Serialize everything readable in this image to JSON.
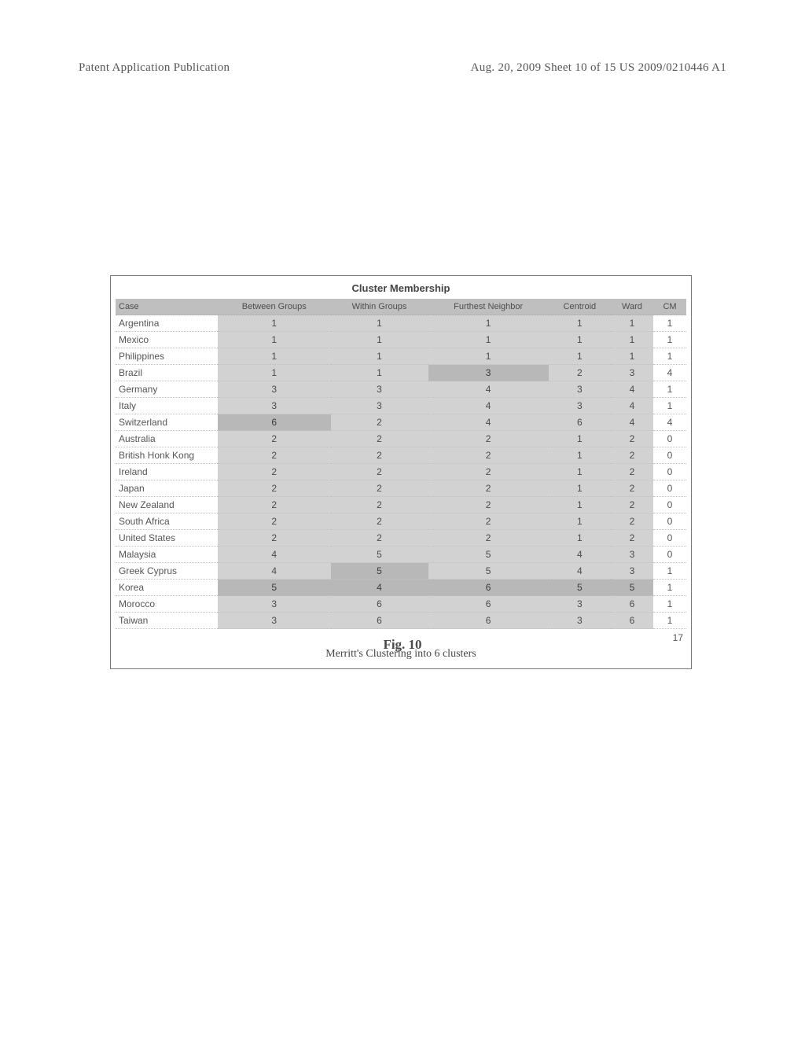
{
  "header": {
    "left": "Patent Application Publication",
    "right": "Aug. 20, 2009  Sheet 10 of 15   US 2009/0210446 A1"
  },
  "figure": {
    "table_title": "Cluster Membership",
    "caption": "Merritt's Clustering into 6 clusters",
    "fig_label": "Fig. 10",
    "sum_value": "17",
    "columns": {
      "case": "Case",
      "between": "Between Groups",
      "within": "Within Groups",
      "furthest": "Furthest Neighbor",
      "centroid": "Centroid",
      "ward": "Ward",
      "cm": "CM"
    },
    "rows": [
      {
        "case": "Argentina",
        "between": "1",
        "within": "1",
        "furthest": "1",
        "centroid": "1",
        "ward": "1",
        "cm": "1",
        "hl": []
      },
      {
        "case": "Mexico",
        "between": "1",
        "within": "1",
        "furthest": "1",
        "centroid": "1",
        "ward": "1",
        "cm": "1",
        "hl": []
      },
      {
        "case": "Philippines",
        "between": "1",
        "within": "1",
        "furthest": "1",
        "centroid": "1",
        "ward": "1",
        "cm": "1",
        "hl": []
      },
      {
        "case": "Brazil",
        "between": "1",
        "within": "1",
        "furthest": "3",
        "centroid": "2",
        "ward": "3",
        "cm": "4",
        "hl": [
          "furthest"
        ]
      },
      {
        "case": "Germany",
        "between": "3",
        "within": "3",
        "furthest": "4",
        "centroid": "3",
        "ward": "4",
        "cm": "1",
        "hl": []
      },
      {
        "case": "Italy",
        "between": "3",
        "within": "3",
        "furthest": "4",
        "centroid": "3",
        "ward": "4",
        "cm": "1",
        "hl": []
      },
      {
        "case": "Switzerland",
        "between": "6",
        "within": "2",
        "furthest": "4",
        "centroid": "6",
        "ward": "4",
        "cm": "4",
        "hl": [
          "between"
        ]
      },
      {
        "case": "Australia",
        "between": "2",
        "within": "2",
        "furthest": "2",
        "centroid": "1",
        "ward": "2",
        "cm": "0",
        "hl": []
      },
      {
        "case": "British Honk Kong",
        "between": "2",
        "within": "2",
        "furthest": "2",
        "centroid": "1",
        "ward": "2",
        "cm": "0",
        "hl": []
      },
      {
        "case": "Ireland",
        "between": "2",
        "within": "2",
        "furthest": "2",
        "centroid": "1",
        "ward": "2",
        "cm": "0",
        "hl": []
      },
      {
        "case": "Japan",
        "between": "2",
        "within": "2",
        "furthest": "2",
        "centroid": "1",
        "ward": "2",
        "cm": "0",
        "hl": []
      },
      {
        "case": "New Zealand",
        "between": "2",
        "within": "2",
        "furthest": "2",
        "centroid": "1",
        "ward": "2",
        "cm": "0",
        "hl": []
      },
      {
        "case": "South Africa",
        "between": "2",
        "within": "2",
        "furthest": "2",
        "centroid": "1",
        "ward": "2",
        "cm": "0",
        "hl": []
      },
      {
        "case": "United States",
        "between": "2",
        "within": "2",
        "furthest": "2",
        "centroid": "1",
        "ward": "2",
        "cm": "0",
        "hl": []
      },
      {
        "case": "Malaysia",
        "between": "4",
        "within": "5",
        "furthest": "5",
        "centroid": "4",
        "ward": "3",
        "cm": "0",
        "hl": []
      },
      {
        "case": "Greek Cyprus",
        "between": "4",
        "within": "5",
        "furthest": "5",
        "centroid": "4",
        "ward": "3",
        "cm": "1",
        "hl": [
          "within"
        ]
      },
      {
        "case": "Korea",
        "between": "5",
        "within": "4",
        "furthest": "6",
        "centroid": "5",
        "ward": "5",
        "cm": "1",
        "hl": [
          "between",
          "within",
          "furthest",
          "centroid",
          "ward"
        ]
      },
      {
        "case": "Morocco",
        "between": "3",
        "within": "6",
        "furthest": "6",
        "centroid": "3",
        "ward": "6",
        "cm": "1",
        "hl": []
      },
      {
        "case": "Taiwan",
        "between": "3",
        "within": "6",
        "furthest": "6",
        "centroid": "3",
        "ward": "6",
        "cm": "1",
        "hl": []
      }
    ]
  },
  "style": {
    "page_bg": "#ffffff",
    "header_color": "#555555",
    "header_fontsize": 15,
    "table_border": "#777777",
    "thead_bg": "#bfbfbf",
    "thead_color": "#4d4d4d",
    "cell_shaded_bg": "#d2d2d2",
    "cell_hl_bg": "#b8b8b8",
    "row_border": "#c0c0c0",
    "body_font": "Arial, Helvetica, sans-serif",
    "body_fontsize": 12,
    "caption_font": "Times New Roman, serif",
    "caption_fontsize": 14,
    "fig_label_fontsize": 17,
    "fig_label_weight": "bold"
  }
}
